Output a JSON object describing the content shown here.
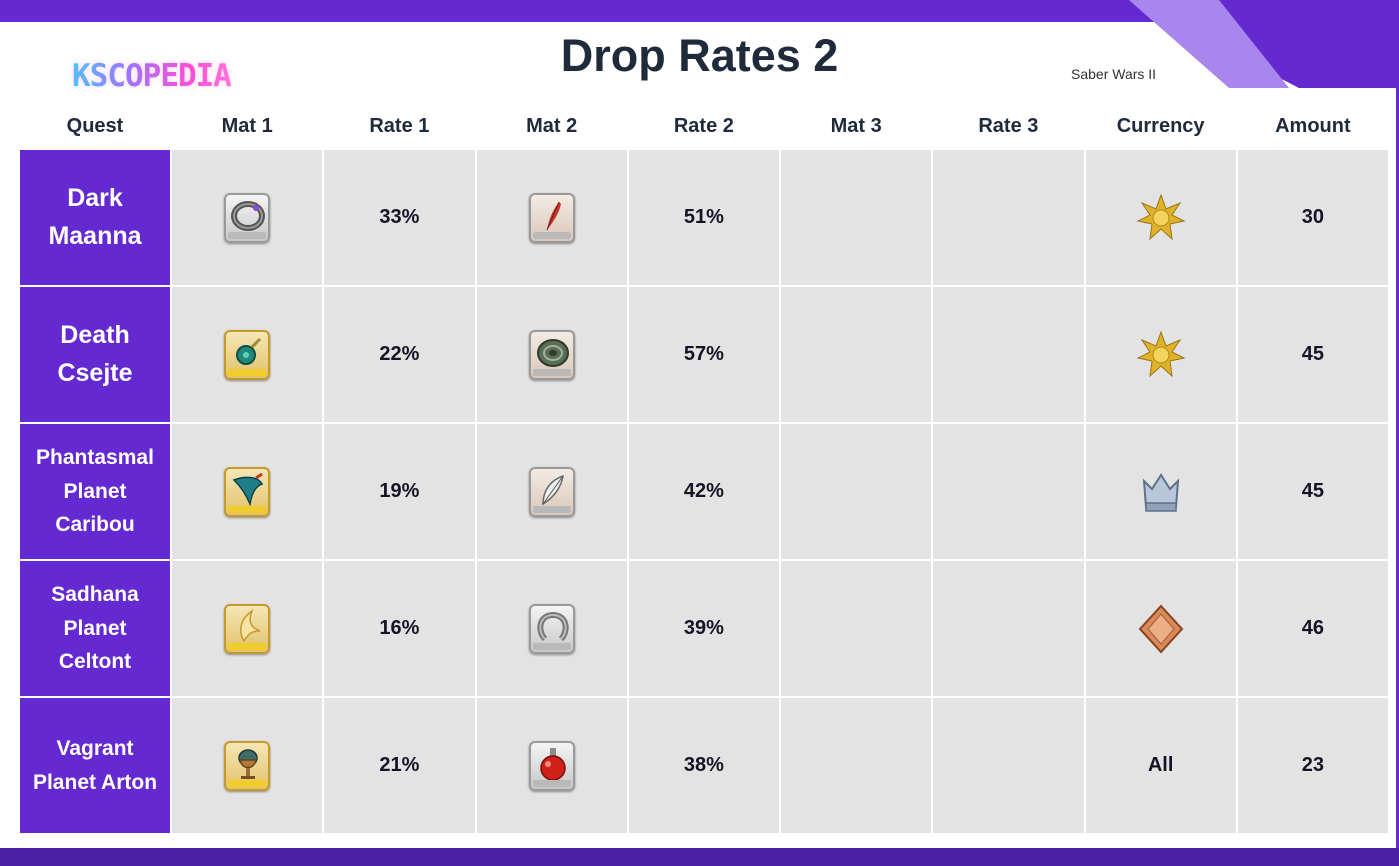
{
  "header": {
    "logo": "KSCOPEDIA",
    "title": "Drop Rates 2",
    "subtitle": "Saber Wars II"
  },
  "columns": [
    "Quest",
    "Mat 1",
    "Rate 1",
    "Mat 2",
    "Rate 2",
    "Mat 3",
    "Rate 3",
    "Currency",
    "Amount"
  ],
  "rows": [
    {
      "quest": "Dark Maanna",
      "mat1_icon": "ring-icon",
      "rate1": "33%",
      "mat2_icon": "red-feather-icon",
      "rate2": "51%",
      "currency_icon": "gold-star-medal-icon",
      "currency_text": "",
      "amount": "30"
    },
    {
      "quest": "Death Csejte",
      "mat1_icon": "jade-ornament-icon",
      "rate1": "22%",
      "mat2_icon": "green-disc-icon",
      "rate2": "57%",
      "currency_icon": "gold-star-medal-icon",
      "currency_text": "",
      "amount": "45"
    },
    {
      "quest": "Phantasmal Planet Caribou",
      "mat1_icon": "teal-wing-icon",
      "rate1": "19%",
      "mat2_icon": "white-feather-icon",
      "rate2": "42%",
      "currency_icon": "silver-crown-icon",
      "currency_text": "",
      "amount": "45"
    },
    {
      "quest": "Sadhana Planet Celtont",
      "mat1_icon": "golden-claw-icon",
      "rate1": "16%",
      "mat2_icon": "horseshoe-icon",
      "rate2": "39%",
      "currency_icon": "bronze-diamond-icon",
      "currency_text": "",
      "amount": "46"
    },
    {
      "quest": "Vagrant Planet Arton",
      "mat1_icon": "egg-chalice-icon",
      "rate1": "21%",
      "mat2_icon": "red-potion-icon",
      "rate2": "38%",
      "currency_icon": "",
      "currency_text": "All",
      "amount": "23"
    }
  ],
  "colors": {
    "accent": "#6529d2",
    "cell_bg": "#e3e3e3",
    "title_text": "#1f2a3a"
  }
}
